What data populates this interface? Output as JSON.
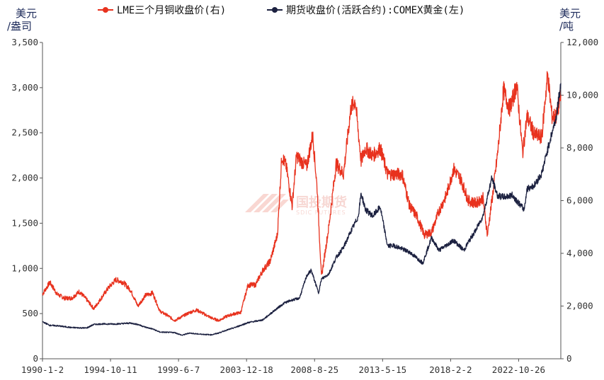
{
  "chart_data": {
    "type": "line",
    "legend": [
      {
        "label": "LME三个月铜收盘价(右)",
        "color": "#e8321e"
      },
      {
        "label": "期货收盘价(活跃合约):COMEX黄金(左)",
        "color": "#1c2140"
      }
    ],
    "left_unit": [
      "美元",
      "/盎司"
    ],
    "right_unit": [
      "美元",
      "/吨"
    ],
    "left_axis": {
      "min": 0,
      "max": 3500,
      "ticks": [
        "0",
        "500",
        "1,000",
        "1,500",
        "2,000",
        "2,500",
        "3,000",
        "3,500"
      ]
    },
    "right_axis": {
      "min": 0,
      "max": 12000,
      "ticks": [
        "0",
        "2,000",
        "4,000",
        "6,000",
        "8,000",
        "10,000",
        "12,000"
      ]
    },
    "x_labels": [
      "1990-1-2",
      "1994-10-11",
      "1999-6-7",
      "2003-12-18",
      "2008-8-25",
      "2013-5-15",
      "2018-2-2",
      "2022-10-26"
    ],
    "x_range": [
      1990.0,
      2025.3
    ],
    "series": [
      {
        "name": "LME三个月铜收盘价(右)",
        "axis": "right",
        "color": "#e8321e",
        "x": [
          1990.0,
          1990.5,
          1991.0,
          1991.5,
          1992.0,
          1992.5,
          1993.0,
          1993.5,
          1994.0,
          1994.5,
          1995.0,
          1995.5,
          1996.0,
          1996.5,
          1997.0,
          1997.5,
          1998.0,
          1998.5,
          1999.0,
          1999.5,
          2000.0,
          2000.5,
          2001.0,
          2001.5,
          2002.0,
          2002.5,
          2003.0,
          2003.5,
          2004.0,
          2004.5,
          2005.0,
          2005.5,
          2006.0,
          2006.3,
          2006.6,
          2007.0,
          2007.3,
          2007.6,
          2008.0,
          2008.4,
          2008.7,
          2009.0,
          2009.5,
          2010.0,
          2010.5,
          2011.0,
          2011.3,
          2011.7,
          2012.0,
          2012.5,
          2013.0,
          2013.5,
          2014.0,
          2014.5,
          2015.0,
          2015.5,
          2016.0,
          2016.5,
          2017.0,
          2017.5,
          2018.0,
          2018.5,
          2019.0,
          2019.5,
          2020.0,
          2020.3,
          2020.7,
          2021.0,
          2021.4,
          2021.8,
          2022.0,
          2022.3,
          2022.7,
          2023.0,
          2023.5,
          2024.0,
          2024.4,
          2024.7,
          2025.0,
          2025.3
        ],
        "values": [
          2450,
          2900,
          2450,
          2300,
          2300,
          2550,
          2250,
          1900,
          2300,
          2700,
          3000,
          2900,
          2600,
          2000,
          2400,
          2500,
          1800,
          1650,
          1450,
          1600,
          1750,
          1850,
          1700,
          1550,
          1450,
          1600,
          1700,
          1750,
          2800,
          2800,
          3350,
          3700,
          4700,
          7700,
          7300,
          5800,
          7700,
          7500,
          7300,
          8500,
          6500,
          3100,
          5000,
          7400,
          7000,
          9500,
          9800,
          7500,
          8000,
          7700,
          8000,
          7000,
          7000,
          7000,
          5800,
          5400,
          4700,
          4800,
          5600,
          6200,
          7200,
          6800,
          6000,
          5900,
          6100,
          4700,
          6400,
          7800,
          10200,
          9500,
          9800,
          10400,
          7800,
          9200,
          8500,
          8400,
          10800,
          9200,
          9200,
          10000
        ]
      },
      {
        "name": "期货收盘价(活跃合约):COMEX黄金(左)",
        "axis": "left",
        "color": "#1c2140",
        "x": [
          1990.0,
          1990.5,
          1991.0,
          1992.0,
          1993.0,
          1993.5,
          1994.0,
          1995.0,
          1996.0,
          1996.5,
          1997.0,
          1997.5,
          1998.0,
          1999.0,
          1999.5,
          2000.0,
          2000.5,
          2001.0,
          2001.5,
          2002.0,
          2002.5,
          2003.0,
          2004.0,
          2005.0,
          2006.0,
          2006.5,
          2007.0,
          2007.5,
          2008.0,
          2008.3,
          2008.8,
          2009.0,
          2009.5,
          2010.0,
          2010.5,
          2011.0,
          2011.5,
          2011.7,
          2012.0,
          2012.5,
          2013.0,
          2013.5,
          2014.0,
          2015.0,
          2015.9,
          2016.5,
          2017.0,
          2018.0,
          2018.7,
          2019.0,
          2019.5,
          2020.0,
          2020.6,
          2021.0,
          2021.5,
          2022.0,
          2022.8,
          2023.0,
          2023.5,
          2024.0,
          2024.5,
          2025.0,
          2025.3
        ],
        "values": [
          410,
          370,
          365,
          345,
          340,
          380,
          385,
          385,
          395,
          380,
          350,
          330,
          295,
          290,
          260,
          285,
          275,
          270,
          265,
          285,
          315,
          340,
          400,
          430,
          560,
          620,
          650,
          670,
          920,
          980,
          730,
          880,
          940,
          1120,
          1230,
          1410,
          1570,
          1830,
          1650,
          1580,
          1680,
          1250,
          1250,
          1180,
          1060,
          1340,
          1200,
          1310,
          1200,
          1290,
          1420,
          1580,
          2000,
          1800,
          1790,
          1810,
          1650,
          1880,
          1920,
          2050,
          2380,
          2680,
          3050
        ]
      }
    ]
  },
  "watermark": {
    "main": "国投期货",
    "sub": "SDIC FUTURES"
  }
}
